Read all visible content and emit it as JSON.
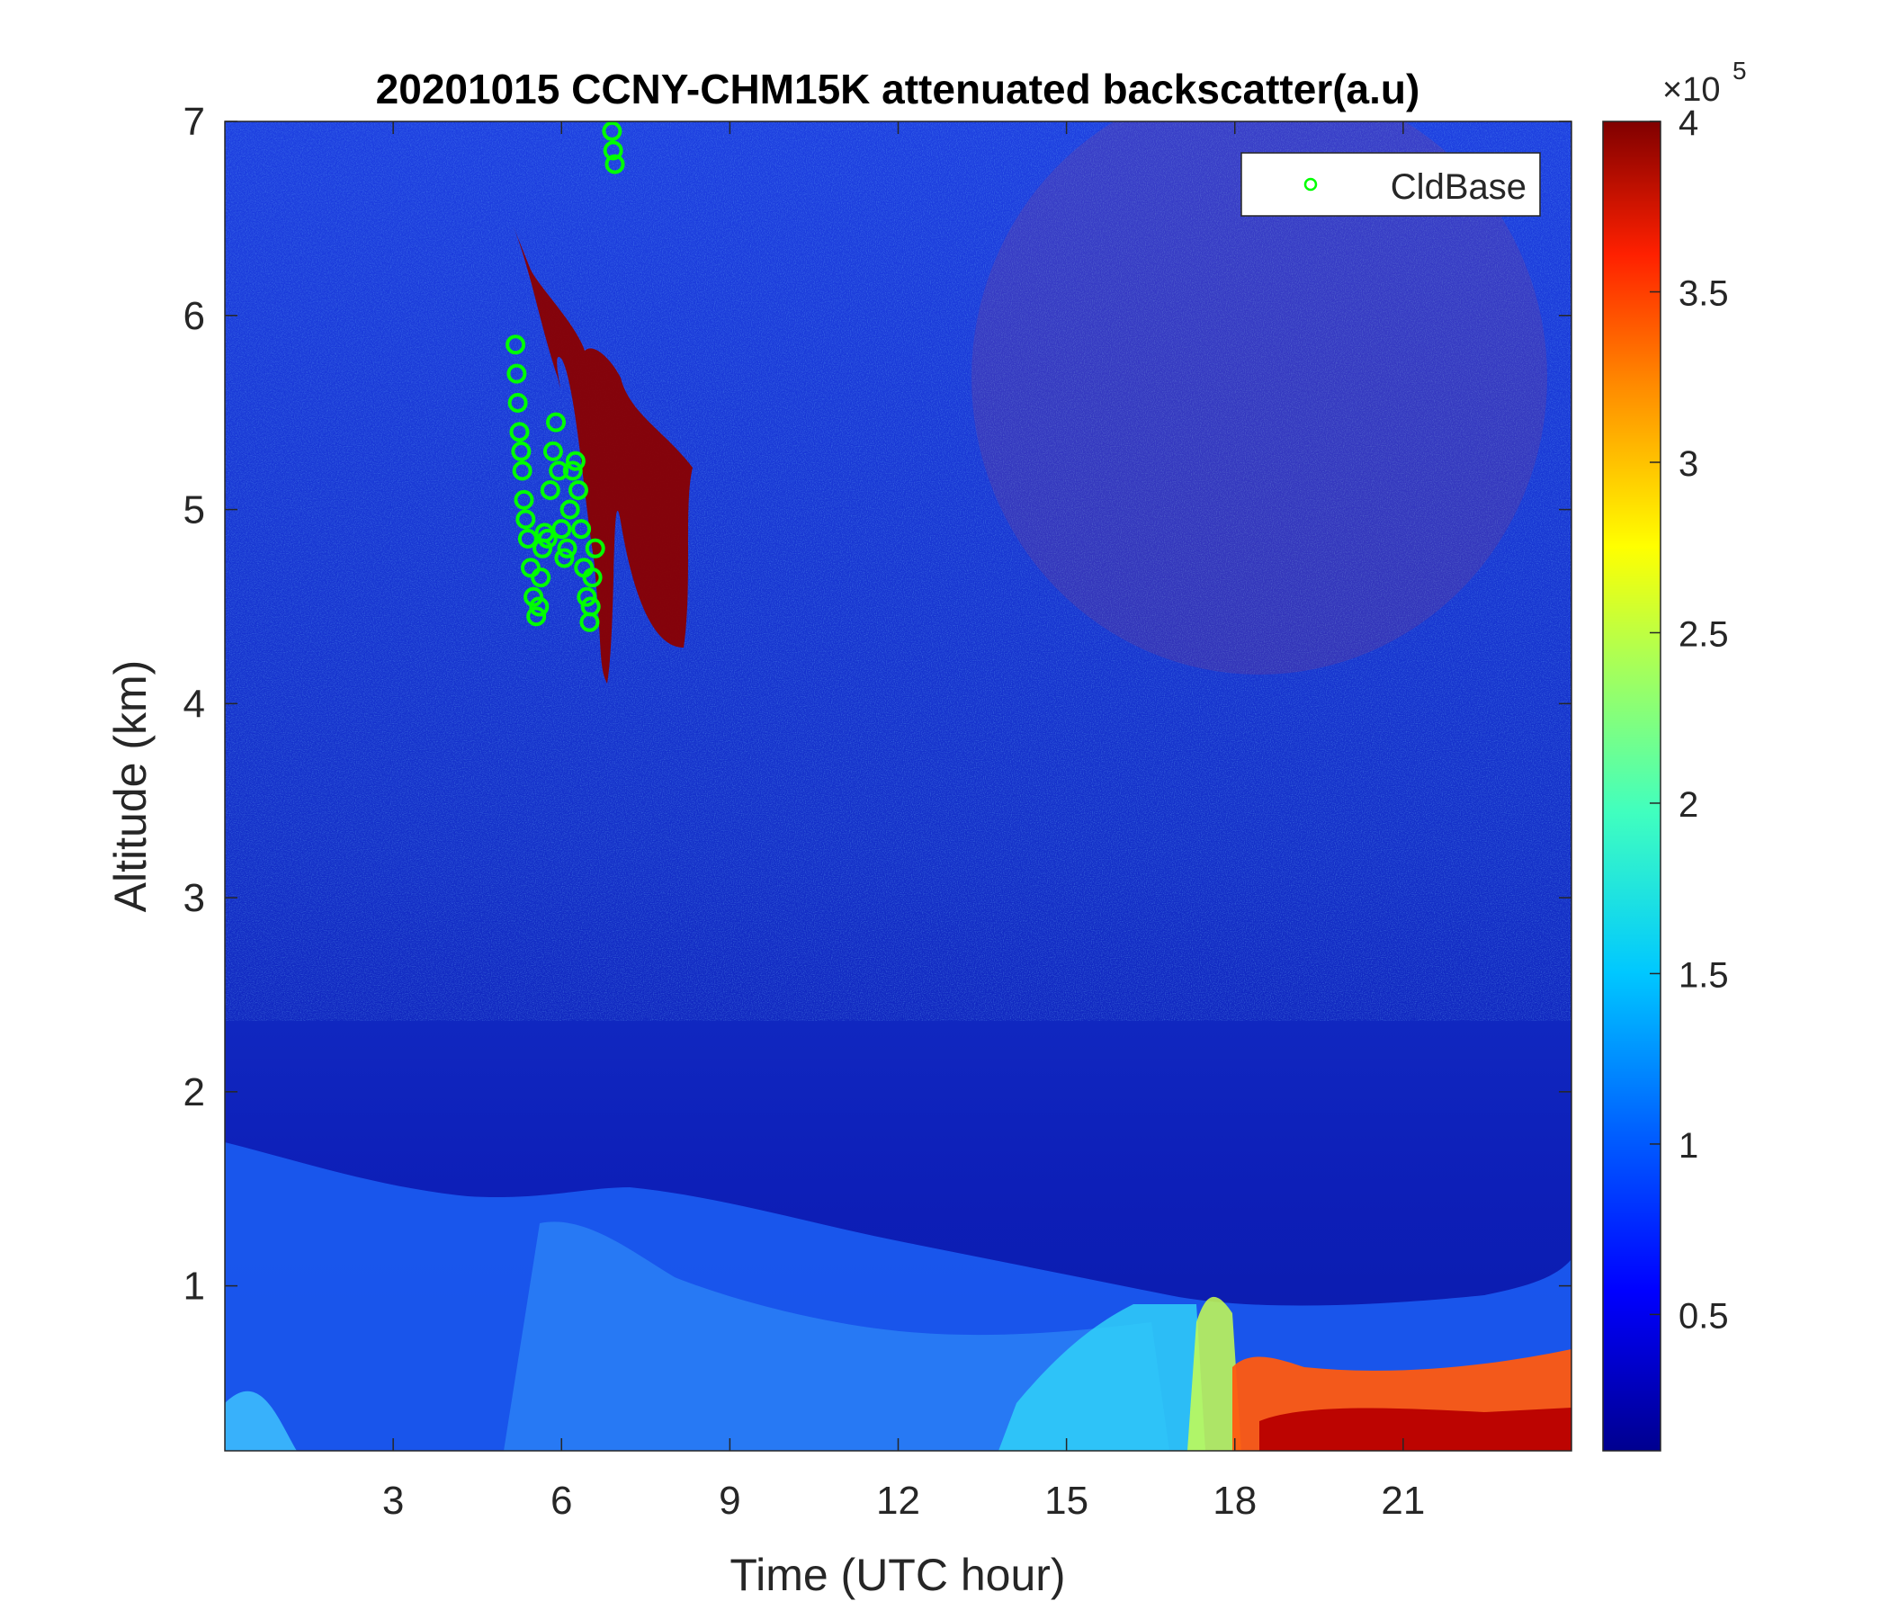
{
  "chart_data": {
    "type": "heatmap",
    "title": "20201015 CCNY-CHM15K attenuated backscatter(a.u)",
    "xlabel": "Time (UTC hour)",
    "ylabel": "Altitude (km)",
    "xlim": [
      0,
      24
    ],
    "ylim": [
      0.15,
      7
    ],
    "xticks": [
      3,
      6,
      9,
      12,
      15,
      18,
      21
    ],
    "yticks": [
      1,
      2,
      3,
      4,
      5,
      6,
      7
    ],
    "colorbar": {
      "colormap": "jet",
      "range": [
        0.1,
        4
      ],
      "ticks": [
        0.5,
        1,
        1.5,
        2,
        2.5,
        3,
        3.5,
        4
      ],
      "exponent_label": "×10",
      "exponent": "5"
    },
    "legend": {
      "placement": "top-right",
      "entries": [
        {
          "name": "CldBase",
          "marker": "circle",
          "color": "#00ff00"
        }
      ]
    },
    "series": [
      {
        "name": "CldBase",
        "marker": "o",
        "color": "#00ff00",
        "x": [
          5.18,
          5.2,
          5.22,
          5.25,
          5.28,
          5.3,
          5.33,
          5.36,
          5.4,
          5.45,
          5.5,
          5.55,
          5.6,
          5.63,
          5.66,
          5.7,
          5.75,
          5.8,
          5.85,
          5.9,
          5.95,
          6.0,
          6.05,
          6.1,
          6.15,
          6.2,
          6.25,
          6.3,
          6.35,
          6.4,
          6.45,
          6.5,
          6.52,
          6.55,
          6.6,
          6.9,
          6.92,
          6.95
        ],
        "y": [
          5.85,
          5.7,
          5.55,
          5.4,
          5.3,
          5.2,
          5.05,
          4.95,
          4.85,
          4.7,
          4.55,
          4.45,
          4.5,
          4.65,
          4.8,
          4.88,
          4.85,
          5.1,
          5.3,
          5.45,
          5.2,
          4.9,
          4.75,
          4.8,
          5.0,
          5.2,
          5.25,
          5.1,
          4.9,
          4.7,
          4.55,
          4.42,
          4.5,
          4.65,
          4.8,
          6.95,
          6.85,
          6.78
        ]
      }
    ]
  }
}
